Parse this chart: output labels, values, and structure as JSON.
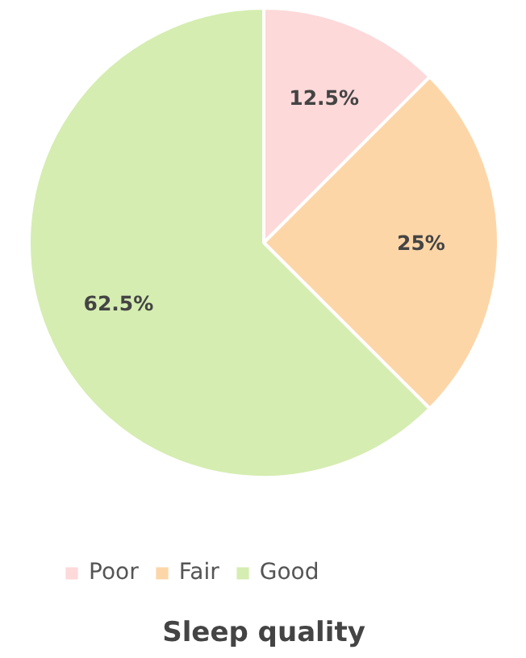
{
  "chart_data": {
    "type": "pie",
    "title": "Sleep quality",
    "categories": [
      "Poor",
      "Fair",
      "Good"
    ],
    "values": [
      12.5,
      25,
      62.5
    ],
    "colors": [
      "#fdd9d9",
      "#fdd6a8",
      "#d5edb1"
    ],
    "value_labels": [
      "12.5%",
      "25%",
      "62.5%"
    ],
    "legend": "bottom"
  }
}
